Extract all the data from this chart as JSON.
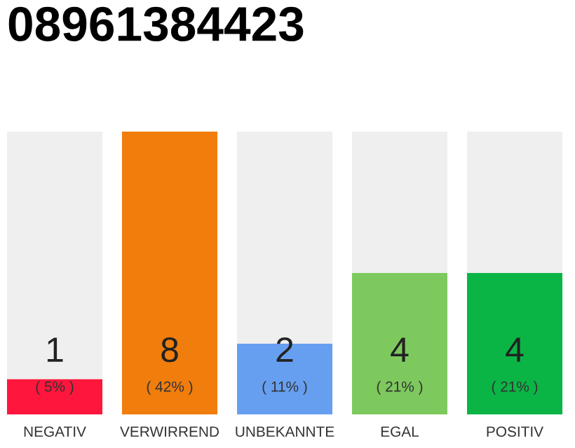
{
  "chart_data": {
    "type": "bar",
    "title": "08961384423",
    "categories": [
      "NEGATIV",
      "VERWIRREND",
      "UNBEKANNTE",
      "EGAL",
      "POSITIV"
    ],
    "stacked": true,
    "series": [
      {
        "colors": [
          "#ff163c",
          "#f07d0c",
          "#679ff0",
          "#7dc95e",
          "#0bb545"
        ],
        "values": [
          1,
          8,
          2,
          4,
          4
        ],
        "value_labels": [
          "1",
          "8",
          "2",
          "4",
          "4"
        ]
      },
      {
        "color": "#efefef",
        "values": [
          7,
          0,
          6,
          4,
          4
        ]
      }
    ],
    "annotations": [
      "( 5% )",
      "( 42% )",
      "( 11% )",
      "( 21% )",
      "( 21% )"
    ],
    "ylim": [
      0,
      8
    ],
    "tick_labels": "x",
    "grid": false,
    "legend": false
  }
}
